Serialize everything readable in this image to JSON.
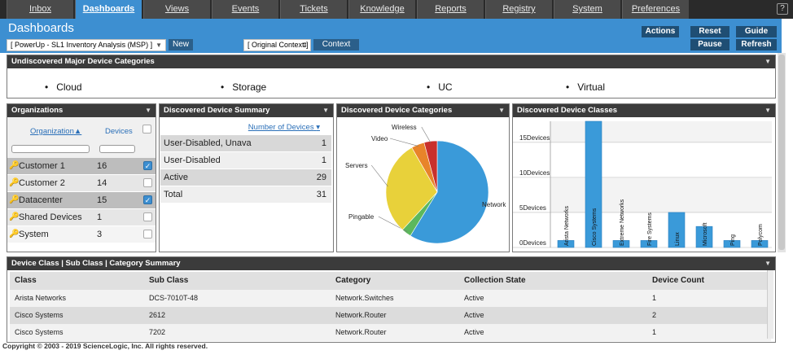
{
  "nav": {
    "tabs": [
      "Inbox",
      "Dashboards",
      "Views",
      "Events",
      "Tickets",
      "Knowledge",
      "Reports",
      "Registry",
      "System",
      "Preferences"
    ],
    "active": "Dashboards"
  },
  "header": {
    "title": "Dashboards",
    "dashboard_select": "[ PowerUp - SL1 Inventory Analysis (MSP) ]",
    "new_label": "New",
    "context_select": "[ Original Context ]",
    "context_label": "Context",
    "actions_label": "Actions",
    "reset_label": "Reset",
    "guide_label": "Guide",
    "pause_label": "Pause",
    "refresh_label": "Refresh"
  },
  "major_categories": {
    "title": "Undiscovered Major Device Categories",
    "items": [
      "Cloud",
      "Storage",
      "UC",
      "Virtual"
    ]
  },
  "organizations": {
    "title": "Organizations",
    "col_org": "Organization",
    "col_devices": "Devices",
    "rows": [
      {
        "name": "Customer 1",
        "devices": "16",
        "checked": true
      },
      {
        "name": "Customer 2",
        "devices": "14",
        "checked": false
      },
      {
        "name": "Datacenter",
        "devices": "15",
        "checked": true
      },
      {
        "name": "Shared Devices",
        "devices": "1",
        "checked": false
      },
      {
        "name": "System",
        "devices": "3",
        "checked": false
      }
    ]
  },
  "summary": {
    "title": "Discovered Device Summary",
    "col": "Number of Devices",
    "rows": [
      {
        "label": "User-Disabled, Unavailable",
        "value": "1"
      },
      {
        "label": "User-Disabled",
        "value": "1"
      },
      {
        "label": "Active",
        "value": "29"
      },
      {
        "label": "Total",
        "value": "31"
      }
    ]
  },
  "categories_chart": {
    "title": "Discovered Device Categories",
    "chart_data": {
      "type": "pie",
      "slices": [
        {
          "label": "Network",
          "value": 57,
          "color": "#3a9ad9"
        },
        {
          "label": "Pingable",
          "value": 3,
          "color": "#5cb85c"
        },
        {
          "label": "Servers",
          "value": 29,
          "color": "#e8d13a"
        },
        {
          "label": "Video",
          "value": 4,
          "color": "#e8842a"
        },
        {
          "label": "Wireless",
          "value": 4,
          "color": "#c9302c"
        }
      ]
    }
  },
  "classes_chart": {
    "title": "Discovered Device Classes",
    "chart_data": {
      "type": "bar",
      "categories": [
        "Arista Networks",
        "Cisco Systems",
        "Extreme Networks",
        "Fire Systems",
        "Linux",
        "Microsoft",
        "Ping",
        "Polycom"
      ],
      "values": [
        1,
        18,
        1,
        1,
        5,
        3,
        1,
        1
      ],
      "ylim": [
        0,
        18
      ],
      "y_ticks": [
        "0Devices",
        "5Devices",
        "10Devices",
        "15Devices"
      ],
      "y_tick_values": [
        0,
        5,
        10,
        15
      ],
      "bar_color": "#3a9ad9"
    }
  },
  "class_summary": {
    "title": "Device Class | Sub Class | Category Summary",
    "columns": [
      "Class",
      "Sub Class",
      "Category",
      "Collection State",
      "Device Count"
    ],
    "rows": [
      [
        "Arista Networks",
        "DCS-7010T-48",
        "Network.Switches",
        "Active",
        "1"
      ],
      [
        "Cisco Systems",
        "2612",
        "Network.Router",
        "Active",
        "2"
      ],
      [
        "Cisco Systems",
        "7202",
        "Network.Router",
        "Active",
        "1"
      ]
    ]
  },
  "footer": "Copyright © 2003 - 2019 ScienceLogic, Inc. All rights reserved."
}
